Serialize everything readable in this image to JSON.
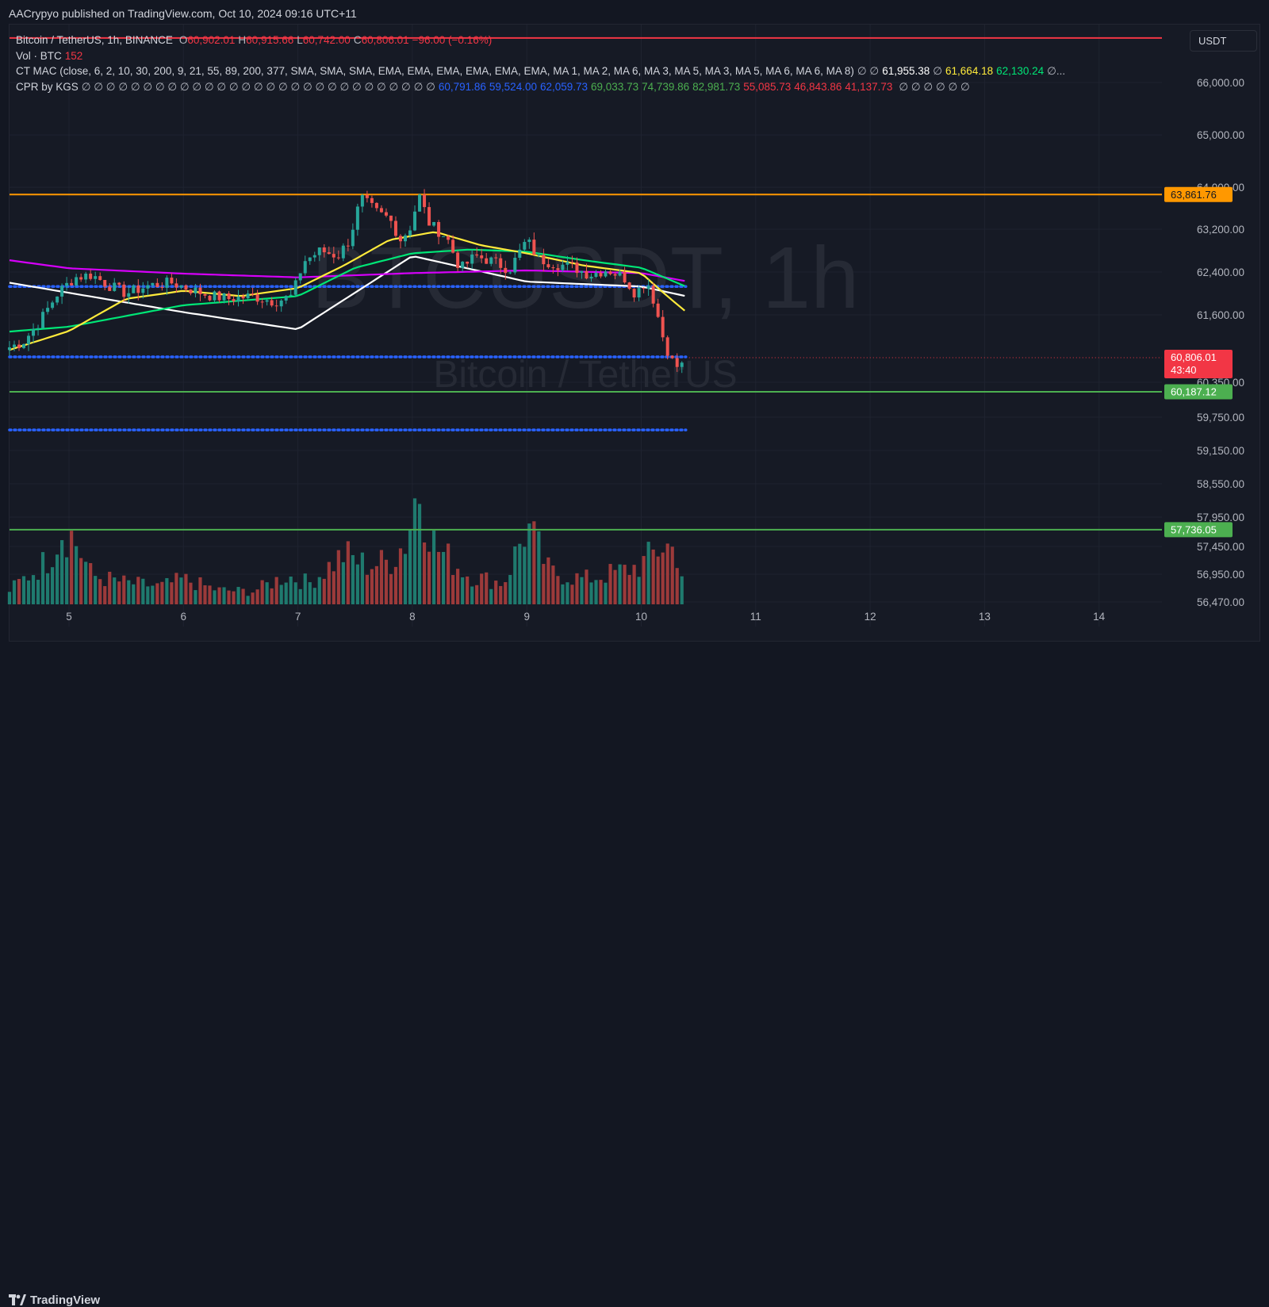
{
  "header": {
    "published_text": "AACrypyo published on TradingView.com, Oct 10, 2024 09:16 UTC+11"
  },
  "legend": {
    "symbol_line": {
      "name": "Bitcoin / TetherUS, 1h, BINANCE",
      "o_label": "O",
      "o_value": "60,902.01",
      "h_label": "H",
      "h_value": "60,915.66",
      "l_label": "L",
      "l_value": "60,742.00",
      "c_label": "C",
      "c_value": "60,806.01",
      "change": "−96.00 (−0.16%)"
    },
    "vol_line": {
      "label": "Vol · BTC",
      "value": "152"
    },
    "mac_line": {
      "label": "CT MAC (close, 6, 2, 10, 30, 200, 9, 21, 55, 89, 200, 377, SMA, SMA, SMA, EMA, EMA, EMA, EMA, EMA, EMA, MA 1, MA 2, MA 6, MA 3, MA 5, MA 3, MA 5, MA 6, MA 6, MA 8)",
      "na": "∅ ∅",
      "v1": "61,955.38",
      "na2": "∅",
      "v2": "61,664.18",
      "v3": "62,130.24",
      "tail": "∅..."
    },
    "cpr_line": {
      "label": "CPR by KGS",
      "na": "∅ ∅ ∅ ∅ ∅ ∅ ∅ ∅ ∅ ∅ ∅ ∅ ∅ ∅ ∅ ∅ ∅ ∅ ∅ ∅ ∅ ∅ ∅ ∅ ∅ ∅ ∅ ∅ ∅",
      "values": [
        {
          "text": "60,791.86",
          "color": "#2962ff"
        },
        {
          "text": "59,524.00",
          "color": "#2962ff"
        },
        {
          "text": "62,059.73",
          "color": "#2962ff"
        },
        {
          "text": "69,033.73",
          "color": "#4caf50"
        },
        {
          "text": "74,739.86",
          "color": "#4caf50"
        },
        {
          "text": "82,981.73",
          "color": "#4caf50"
        },
        {
          "text": "55,085.73",
          "color": "#f23645"
        },
        {
          "text": "46,843.86",
          "color": "#f23645"
        },
        {
          "text": "41,137.73",
          "color": "#f23645"
        }
      ],
      "tail": "∅ ∅ ∅ ∅ ∅ ∅"
    }
  },
  "currency": "USDT",
  "watermark": {
    "big": "BTCUSDT, 1h",
    "small": "Bitcoin / TetherUS"
  },
  "footer": {
    "brand": "TradingView",
    "logo_icon": "tradingview-logo-icon"
  },
  "colors": {
    "up": "#26a69a",
    "down": "#ef5350",
    "vol_up": "#1f7a6e",
    "vol_down": "#9c3a3a",
    "orange": "#ff9800",
    "green": "#4caf50",
    "red": "#f23645",
    "blue_dots": "#2962ff",
    "ema_yellow": "#ffeb3b",
    "ema_green": "#00e676",
    "sma_white": "#ffffff",
    "sma_purple": "#d500f9"
  },
  "chart_data": {
    "type": "candlestick",
    "timeframe": "1h",
    "x_ticks": [
      "5",
      "6",
      "7",
      "8",
      "9",
      "10",
      "11",
      "12",
      "13",
      "14"
    ],
    "x_range_days": [
      4.48,
      14.55
    ],
    "y_range": [
      56320,
      66700
    ],
    "y_ticks": [
      "66,000.00",
      "65,000.00",
      "64,000.00",
      "63,200.00",
      "62,400.00",
      "61,600.00",
      "60,350.00",
      "59,750.00",
      "59,150.00",
      "58,550.00",
      "57,950.00",
      "57,450.00",
      "56,950.00",
      "56,470.00"
    ],
    "y_tick_values": [
      66000,
      65000,
      64000,
      63200,
      62400,
      61600,
      60350,
      59750,
      59150,
      58550,
      57950,
      57450,
      56950,
      56470
    ],
    "last_price": {
      "value": 60806.01,
      "label": "60,806.01",
      "countdown": "43:40"
    },
    "horizontal_lines": [
      {
        "name": "red-top-line",
        "price": 66850,
        "color": "#f23645"
      },
      {
        "name": "orange-resistance",
        "price": 63861.76,
        "label": "63,861.76",
        "color": "#ff9800"
      },
      {
        "name": "green-support-1",
        "price": 60187.12,
        "label": "60,187.12",
        "color": "#4caf50"
      },
      {
        "name": "green-support-2",
        "price": 57736.05,
        "label": "57,736.05",
        "color": "#4caf50"
      }
    ],
    "dotted_levels": [
      {
        "name": "cpr-pivot",
        "price": 62130,
        "from_day": 4.48,
        "to_day": 10.39
      },
      {
        "name": "cpr-bc",
        "price": 60820,
        "from_day": 4.48,
        "to_day": 10.39
      },
      {
        "name": "cpr-s",
        "price": 59520,
        "from_day": 4.48,
        "to_day": 10.39
      }
    ],
    "price_path": [
      [
        4.48,
        61000
      ],
      [
        4.6,
        61100
      ],
      [
        4.75,
        61500
      ],
      [
        4.9,
        62000
      ],
      [
        5.05,
        62300
      ],
      [
        5.2,
        62350
      ],
      [
        5.35,
        62150
      ],
      [
        5.5,
        62000
      ],
      [
        5.7,
        62150
      ],
      [
        5.9,
        62200
      ],
      [
        6.1,
        62050
      ],
      [
        6.25,
        61950
      ],
      [
        6.4,
        61900
      ],
      [
        6.6,
        61950
      ],
      [
        6.8,
        61850
      ],
      [
        6.95,
        61950
      ],
      [
        7.05,
        62600
      ],
      [
        7.2,
        62800
      ],
      [
        7.35,
        62700
      ],
      [
        7.45,
        63000
      ],
      [
        7.55,
        63800
      ],
      [
        7.7,
        63500
      ],
      [
        7.8,
        63400
      ],
      [
        7.9,
        63000
      ],
      [
        8.0,
        63300
      ],
      [
        8.05,
        63900
      ],
      [
        8.15,
        63300
      ],
      [
        8.3,
        63050
      ],
      [
        8.42,
        62450
      ],
      [
        8.55,
        62700
      ],
      [
        8.7,
        62600
      ],
      [
        8.85,
        62450
      ],
      [
        9.0,
        63000
      ],
      [
        9.1,
        62650
      ],
      [
        9.25,
        62550
      ],
      [
        9.4,
        62500
      ],
      [
        9.55,
        62350
      ],
      [
        9.7,
        62450
      ],
      [
        9.85,
        62300
      ],
      [
        9.95,
        62000
      ],
      [
        10.05,
        62250
      ],
      [
        10.12,
        61800
      ],
      [
        10.2,
        61100
      ],
      [
        10.28,
        60700
      ],
      [
        10.34,
        60600
      ],
      [
        10.39,
        60806
      ]
    ],
    "ma_lines": [
      {
        "name": "sma-white",
        "color": "#ffffff",
        "points": [
          [
            4.48,
            62200
          ],
          [
            6.0,
            61650
          ],
          [
            7.0,
            61330
          ],
          [
            8.0,
            62700
          ],
          [
            9.0,
            62220
          ],
          [
            10.0,
            62130
          ],
          [
            10.39,
            61950
          ]
        ]
      },
      {
        "name": "sma-purple",
        "color": "#d500f9",
        "points": [
          [
            4.48,
            62620
          ],
          [
            5.0,
            62470
          ],
          [
            6.0,
            62370
          ],
          [
            7.0,
            62300
          ],
          [
            8.0,
            62380
          ],
          [
            9.0,
            62430
          ],
          [
            10.0,
            62380
          ],
          [
            10.39,
            62230
          ]
        ]
      },
      {
        "name": "ema-green",
        "color": "#00e676",
        "points": [
          [
            4.48,
            61290
          ],
          [
            5.0,
            61380
          ],
          [
            6.0,
            61780
          ],
          [
            7.0,
            61950
          ],
          [
            7.5,
            62480
          ],
          [
            8.0,
            62750
          ],
          [
            8.5,
            62820
          ],
          [
            9.0,
            62780
          ],
          [
            9.5,
            62620
          ],
          [
            10.0,
            62480
          ],
          [
            10.39,
            62130
          ]
        ]
      },
      {
        "name": "ema-yellow",
        "color": "#ffeb3b",
        "points": [
          [
            4.48,
            60950
          ],
          [
            5.0,
            61300
          ],
          [
            5.5,
            61900
          ],
          [
            6.0,
            62050
          ],
          [
            6.5,
            61950
          ],
          [
            7.0,
            62100
          ],
          [
            7.4,
            62520
          ],
          [
            7.8,
            63000
          ],
          [
            8.2,
            63150
          ],
          [
            8.6,
            62900
          ],
          [
            9.0,
            62750
          ],
          [
            9.5,
            62520
          ],
          [
            10.0,
            62380
          ],
          [
            10.2,
            62000
          ],
          [
            10.39,
            61660
          ]
        ]
      }
    ],
    "volume_path": [
      [
        4.48,
        20
      ],
      [
        4.8,
        60
      ],
      [
        4.95,
        110
      ],
      [
        5.05,
        90
      ],
      [
        5.2,
        40
      ],
      [
        5.5,
        30
      ],
      [
        5.8,
        25
      ],
      [
        6.0,
        35
      ],
      [
        6.3,
        20
      ],
      [
        6.6,
        18
      ],
      [
        6.9,
        40
      ],
      [
        7.1,
        30
      ],
      [
        7.4,
        70
      ],
      [
        7.6,
        55
      ],
      [
        7.8,
        60
      ],
      [
        7.95,
        90
      ],
      [
        8.05,
        170
      ],
      [
        8.2,
        80
      ],
      [
        8.5,
        40
      ],
      [
        8.8,
        30
      ],
      [
        9.0,
        110
      ],
      [
        9.2,
        45
      ],
      [
        9.5,
        35
      ],
      [
        9.8,
        45
      ],
      [
        10.0,
        55
      ],
      [
        10.2,
        85
      ],
      [
        10.33,
        70
      ],
      [
        10.39,
        5
      ]
    ]
  }
}
